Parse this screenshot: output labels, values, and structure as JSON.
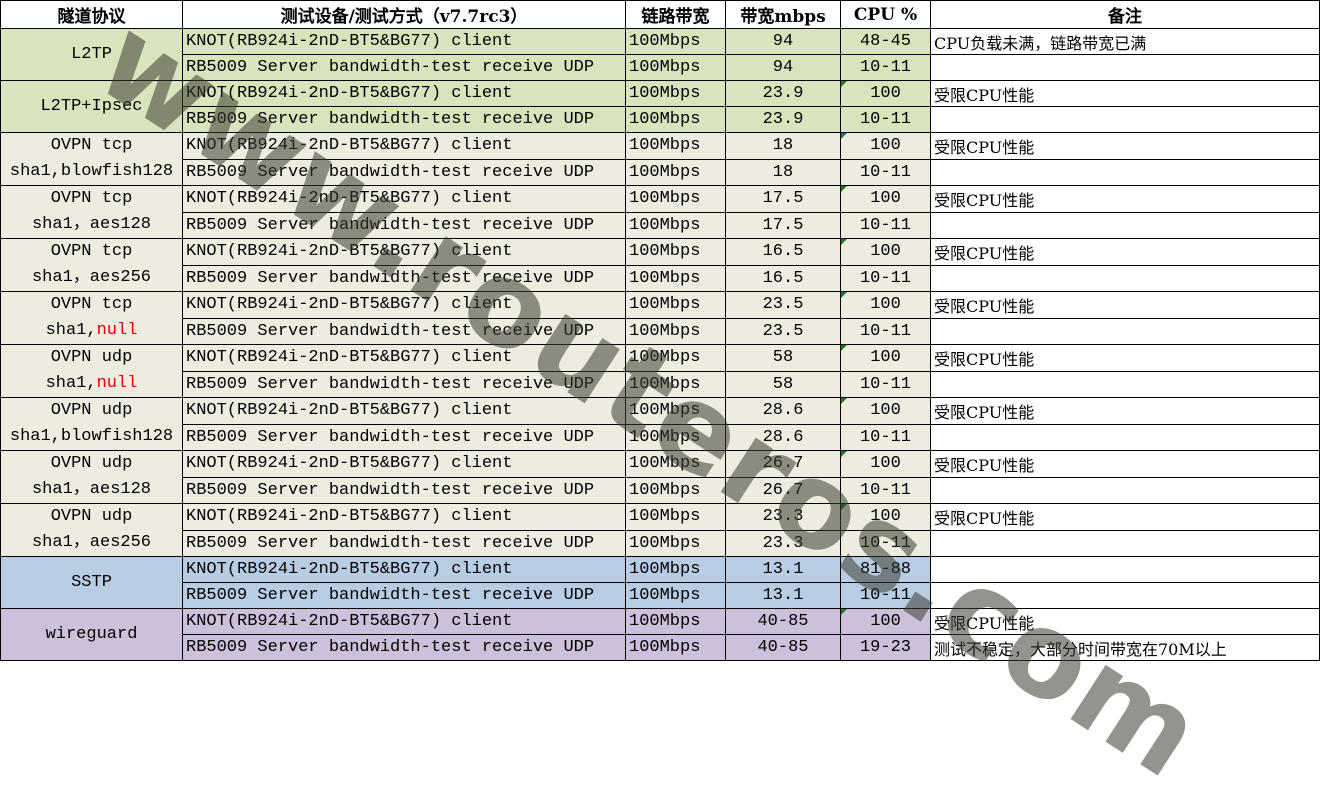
{
  "headers": [
    "隧道协议",
    "测试设备/测试方式（v7.7rc3）",
    "链路带宽",
    "带宽mbps",
    "CPU %",
    "备注"
  ],
  "colors": {
    "green": "#d8e4bc",
    "beige": "#eeece1",
    "blue": "#b8cce4",
    "purple": "#ccc0da",
    "highlight": "#e00000"
  },
  "watermark": "www.routeros.com",
  "groups": [
    {
      "line1": "L2TP",
      "line2": "",
      "hl": "",
      "color": "green",
      "rows": [
        {
          "device": "KNOT(RB924i-2nD-BT5&BG77) client",
          "link": "100Mbps",
          "bw": "94",
          "cpu": "48-45",
          "note": "CPU负载未满，链路带宽已满"
        },
        {
          "device": "RB5009 Server bandwidth-test receive UDP",
          "link": "100Mbps",
          "bw": "94",
          "cpu": "10-11",
          "note": ""
        }
      ]
    },
    {
      "line1": "L2TP+Ipsec",
      "line2": "",
      "hl": "",
      "color": "green",
      "rows": [
        {
          "device": "KNOT(RB924i-2nD-BT5&BG77) client",
          "link": "100Mbps",
          "bw": "23.9",
          "cpu": "100",
          "note": "受限CPU性能"
        },
        {
          "device": "RB5009 Server bandwidth-test receive UDP",
          "link": "100Mbps",
          "bw": "23.9",
          "cpu": "10-11",
          "note": ""
        }
      ]
    },
    {
      "line1": "OVPN tcp",
      "line2": "sha1,blowfish128",
      "hl": "",
      "color": "beige",
      "rows": [
        {
          "device": "KNOT(RB924i-2nD-BT5&BG77) client",
          "link": "100Mbps",
          "bw": "18",
          "cpu": "100",
          "note": "受限CPU性能"
        },
        {
          "device": "RB5009 Server bandwidth-test receive UDP",
          "link": "100Mbps",
          "bw": "18",
          "cpu": "10-11",
          "note": ""
        }
      ]
    },
    {
      "line1": "OVPN tcp",
      "line2": "sha1，aes128",
      "hl": "",
      "color": "beige",
      "rows": [
        {
          "device": "KNOT(RB924i-2nD-BT5&BG77) client",
          "link": "100Mbps",
          "bw": "17.5",
          "cpu": "100",
          "note": "受限CPU性能"
        },
        {
          "device": "RB5009 Server bandwidth-test receive UDP",
          "link": "100Mbps",
          "bw": "17.5",
          "cpu": "10-11",
          "note": ""
        }
      ]
    },
    {
      "line1": "OVPN tcp",
      "line2": "sha1，aes256",
      "hl": "",
      "color": "beige",
      "rows": [
        {
          "device": "KNOT(RB924i-2nD-BT5&BG77) client",
          "link": "100Mbps",
          "bw": "16.5",
          "cpu": "100",
          "note": "受限CPU性能"
        },
        {
          "device": "RB5009 Server bandwidth-test receive UDP",
          "link": "100Mbps",
          "bw": "16.5",
          "cpu": "10-11",
          "note": ""
        }
      ]
    },
    {
      "line1": "OVPN tcp",
      "line2": "sha1,",
      "hl": "null",
      "color": "beige",
      "rows": [
        {
          "device": "KNOT(RB924i-2nD-BT5&BG77) client",
          "link": "100Mbps",
          "bw": "23.5",
          "cpu": "100",
          "note": "受限CPU性能"
        },
        {
          "device": "RB5009 Server bandwidth-test receive UDP",
          "link": "100Mbps",
          "bw": "23.5",
          "cpu": "10-11",
          "note": ""
        }
      ]
    },
    {
      "line1": "OVPN udp",
      "line2": "sha1,",
      "hl": "null",
      "color": "beige",
      "rows": [
        {
          "device": "KNOT(RB924i-2nD-BT5&BG77) client",
          "link": "100Mbps",
          "bw": "58",
          "cpu": "100",
          "note": "受限CPU性能"
        },
        {
          "device": "RB5009 Server bandwidth-test receive UDP",
          "link": "100Mbps",
          "bw": "58",
          "cpu": "10-11",
          "note": ""
        }
      ]
    },
    {
      "line1": "OVPN udp",
      "line2": "sha1,blowfish128",
      "hl": "",
      "color": "beige",
      "rows": [
        {
          "device": "KNOT(RB924i-2nD-BT5&BG77) client",
          "link": "100Mbps",
          "bw": "28.6",
          "cpu": "100",
          "note": "受限CPU性能"
        },
        {
          "device": "RB5009 Server bandwidth-test receive UDP",
          "link": "100Mbps",
          "bw": "28.6",
          "cpu": "10-11",
          "note": ""
        }
      ]
    },
    {
      "line1": "OVPN udp",
      "line2": "sha1，aes128",
      "hl": "",
      "color": "beige",
      "rows": [
        {
          "device": "KNOT(RB924i-2nD-BT5&BG77) client",
          "link": "100Mbps",
          "bw": "26.7",
          "cpu": "100",
          "note": "受限CPU性能"
        },
        {
          "device": "RB5009 Server bandwidth-test receive UDP",
          "link": "100Mbps",
          "bw": "26.7",
          "cpu": "10-11",
          "note": ""
        }
      ]
    },
    {
      "line1": "OVPN udp",
      "line2": "sha1，aes256",
      "hl": "",
      "color": "beige",
      "rows": [
        {
          "device": "KNOT(RB924i-2nD-BT5&BG77) client",
          "link": "100Mbps",
          "bw": "23.3",
          "cpu": "100",
          "note": "受限CPU性能"
        },
        {
          "device": "RB5009 Server bandwidth-test receive UDP",
          "link": "100Mbps",
          "bw": "23.3",
          "cpu": "10-11",
          "note": ""
        }
      ]
    },
    {
      "line1": "SSTP",
      "line2": "",
      "hl": "",
      "color": "blue",
      "rows": [
        {
          "device": "KNOT(RB924i-2nD-BT5&BG77) client",
          "link": "100Mbps",
          "bw": "13.1",
          "cpu": "81-88",
          "note": ""
        },
        {
          "device": "RB5009 Server bandwidth-test receive UDP",
          "link": "100Mbps",
          "bw": "13.1",
          "cpu": "10-11",
          "note": ""
        }
      ]
    },
    {
      "line1": "wireguard",
      "line2": "",
      "hl": "",
      "color": "purple",
      "rows": [
        {
          "device": "KNOT(RB924i-2nD-BT5&BG77) client",
          "link": "100Mbps",
          "bw": "40-85",
          "cpu": "100",
          "note": "受限CPU性能"
        },
        {
          "device": "RB5009 Server bandwidth-test receive UDP",
          "link": "100Mbps",
          "bw": "40-85",
          "cpu": "19-23",
          "note": "测试不稳定，大部分时间带宽在70M以上"
        }
      ]
    }
  ]
}
